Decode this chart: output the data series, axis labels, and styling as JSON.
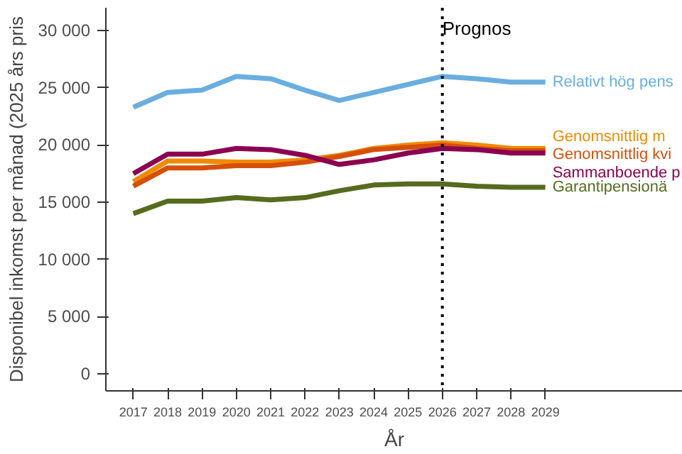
{
  "chart_data": {
    "type": "line",
    "xlabel": "År",
    "ylabel": "Disponibel inkomst per månad (2025 års pris",
    "x": [
      2017,
      2018,
      2019,
      2020,
      2021,
      2022,
      2023,
      2024,
      2025,
      2026,
      2027,
      2028,
      2029
    ],
    "series": [
      {
        "name": "Relativt hög pens",
        "color": "#6aaee0",
        "values": [
          23300,
          24600,
          24800,
          26000,
          25800,
          24800,
          23900,
          24600,
          25300,
          26000,
          25800,
          25500,
          25500
        ]
      },
      {
        "name": "Genomsnittlig m",
        "color": "#f08a00",
        "values": [
          16800,
          18600,
          18600,
          18500,
          18500,
          18700,
          19100,
          19700,
          20000,
          20200,
          20000,
          19700,
          19700
        ]
      },
      {
        "name": "Genomsnittlig kvi",
        "color": "#d4500a",
        "values": [
          16400,
          18000,
          18000,
          18200,
          18200,
          18500,
          19000,
          19600,
          19800,
          20000,
          19700,
          19500,
          19500
        ]
      },
      {
        "name": "Sammanboende p",
        "color": "#8b0050",
        "values": [
          17500,
          19200,
          19200,
          19700,
          19600,
          19100,
          18300,
          18700,
          19300,
          19700,
          19600,
          19300,
          19300
        ]
      },
      {
        "name": "Garantipensionä",
        "color": "#556b1e",
        "values": [
          14000,
          15100,
          15100,
          15400,
          15200,
          15400,
          16000,
          16500,
          16600,
          16600,
          16400,
          16300,
          16300
        ]
      }
    ],
    "xlim": [
      2016.2,
      2033
    ],
    "ylim": [
      -1500,
      32000
    ],
    "xticks": [
      2017,
      2018,
      2019,
      2020,
      2021,
      2022,
      2023,
      2024,
      2025,
      2026,
      2027,
      2028,
      2029
    ],
    "yticks": [
      {
        "value": 0,
        "label": "0"
      },
      {
        "value": 5000,
        "label": "5 000"
      },
      {
        "value": 10000,
        "label": "10 000"
      },
      {
        "value": 15000,
        "label": "15 000"
      },
      {
        "value": 20000,
        "label": "20 000"
      },
      {
        "value": 25000,
        "label": "25 000"
      },
      {
        "value": 30000,
        "label": "30 000"
      }
    ],
    "ref_lines": [
      {
        "axis": "x",
        "value": 2026,
        "label": "Prognos",
        "color": "#000000",
        "line_style": "dotted"
      }
    ],
    "grid": false,
    "marker": "none",
    "line_style": "solid"
  }
}
